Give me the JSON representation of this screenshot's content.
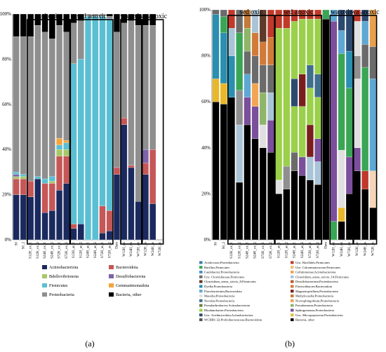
{
  "figure": {
    "panel_labels": [
      "(a)",
      "(b)"
    ],
    "group_labels": [
      "sed oxic",
      "sed anoxic",
      "wa oxic",
      "wa anoxic"
    ]
  },
  "colors": {
    "Actinobacteriota": "#1b2a5e",
    "Bacteroidota": "#c65757",
    "Bdellovibrionota": "#a7c769",
    "Desulfobacterota": "#7d63a8",
    "Firmicutes": "#5bbfd3",
    "Gemmatimonadota": "#f3a53c",
    "Proteobacteria": "#8f8f8f",
    "Bacteria, other": "#000000"
  },
  "chart_data": [
    {
      "type": "bar",
      "stacked": true,
      "panel": "(a)",
      "ylim": [
        0,
        100
      ],
      "yticks": [
        "0%",
        "20%",
        "40%",
        "60%",
        "80%",
        "100%"
      ],
      "categories": [
        "S0",
        "S0_2",
        "S12H_ox_1",
        "S12H_ox_2",
        "S24H_ox_1",
        "S24H_ox_2",
        "S72H_ox_1",
        "S72H_ox_2",
        "S12H_as_1",
        "S12H_as_2",
        "S24H_as_1",
        "S24H_as_2",
        "S72H_as_1",
        "S72H_as_2",
        "Dam",
        "W12H_ox",
        "W24H_ox",
        "W72H_ox",
        "W12H_as",
        "W24H_as",
        "W72H_as"
      ],
      "legend": [
        "Actinobacteriota",
        "Bacteroidota",
        "Bdellovibrionota",
        "Desulfobacterota",
        "Firmicutes",
        "Gemmatimonadota",
        "Proteobacteria",
        "Bacteria, other"
      ],
      "series": [
        {
          "name": "Actinobacteriota",
          "values": [
            20,
            20,
            19,
            27,
            12,
            13,
            22,
            25,
            5,
            7,
            0,
            0,
            3,
            4,
            29,
            51,
            32,
            17,
            29,
            16,
            0
          ]
        },
        {
          "name": "Bacteroidota",
          "values": [
            7,
            7,
            7,
            0,
            13,
            12,
            15,
            12,
            2,
            0,
            0,
            0,
            12,
            9,
            3,
            3,
            1,
            0,
            5,
            24,
            0
          ]
        },
        {
          "name": "Bdellovibrionota",
          "values": [
            1,
            1,
            0,
            0,
            0,
            1,
            3,
            3,
            0,
            0,
            0,
            0,
            0,
            0,
            0,
            0,
            0,
            0,
            0,
            0,
            0
          ]
        },
        {
          "name": "Desulfobacterota",
          "values": [
            1,
            0,
            0,
            0,
            0,
            0,
            0,
            0,
            0,
            0,
            0,
            0,
            0,
            0,
            0,
            0,
            0,
            0,
            6,
            0,
            0
          ]
        },
        {
          "name": "Firmicutes",
          "values": [
            1,
            1,
            0,
            1,
            2,
            2,
            2,
            3,
            71,
            73,
            99,
            99,
            84,
            85,
            0,
            0,
            0,
            0,
            0,
            0,
            0
          ]
        },
        {
          "name": "Gemmatimonadota",
          "values": [
            0,
            0,
            0,
            0,
            0,
            0,
            3,
            1,
            0,
            0,
            0,
            0,
            0,
            0,
            0,
            0,
            0,
            0,
            0,
            0,
            0
          ]
        },
        {
          "name": "Proteobacteria",
          "values": [
            60,
            61,
            64,
            67,
            65,
            61,
            50,
            48,
            18,
            17,
            1,
            1,
            1,
            1,
            60,
            42,
            64,
            78,
            55,
            55,
            0
          ]
        },
        {
          "name": "Bacteria, other",
          "values": [
            10,
            10,
            10,
            5,
            8,
            11,
            5,
            8,
            4,
            3,
            0,
            0,
            0,
            1,
            8,
            4,
            3,
            5,
            5,
            5,
            0
          ]
        }
      ]
    },
    {
      "type": "bar",
      "stacked": true,
      "panel": "(b)",
      "ylim": [
        0,
        100
      ],
      "yticks": [
        "0%",
        "20%",
        "40%",
        "60%",
        "80%",
        "100%"
      ],
      "categories": [
        "S0",
        "S0_2",
        "S12H_ox_1",
        "S12H_ox_2",
        "S24H_ox_1",
        "S24H_ox_2",
        "S72H_ox_1",
        "S72H_ox_2",
        "S12H_as_1",
        "S12H_as_2",
        "S24H_as_1",
        "S24H_as_2",
        "S72H_as_1",
        "S72H_as_2",
        "Dam",
        "W12H_ox",
        "W24H_ox",
        "W72H_ox",
        "W12H_as",
        "W24H_as",
        "W72H_as"
      ],
      "legend": [
        "Acidovorax;Proteobacteria",
        "Unc. Bacillales;Firmicutes",
        "Bacillus;Firmicutes",
        "Unc. Caloramatoraceae;Firmicutes",
        "Caulobacter;Proteobacteria",
        "Cellulomonas;Actinobacteriota",
        "Unc. Clostridiaceae;Firmicutes",
        "Clostridium_sensu_stricto_10;Firmicutes",
        "Clostridium_sensu_stricto_8;Firmicutes",
        "Desulfobacterium;Proteobacteria",
        "Dyella;Proteobacteria",
        "Flavisolibacter;Bacteroidota",
        "Flavobacterium;Bacteroidota",
        "Magnetospirillum;Proteobacteria",
        "Massilia;Proteobacteria",
        "Methyloceella;Proteobacteria",
        "Nevskia;Proteobacteria",
        "Novosphingobium;Proteobacteria",
        "Pseudarthrobacter;Actinobacteriota",
        "Pseudomonas;Proteobacteria",
        "Rhodanobacter;Proteobacteria",
        "Sphingomonas;Proteobacteria",
        "Unc. Acidimicrobiia;Actinobacteriota",
        "Unc. Micropepsaceae;Proteobacteria",
        "WCHB1-32;Prolixibacteraceae;Bacteroidota",
        "Bacteria, other"
      ],
      "legend_colors": [
        "#3a7fa8",
        "#c0392b",
        "#3aa655",
        "#e8c07a",
        "#4c93c7",
        "#f2a654",
        "#6b6b6b",
        "#a9c4d6",
        "#5d3a2a",
        "#b85a30",
        "#2a8fb0",
        "#d17b3a",
        "#5fa8d3",
        "#7a1d1d",
        "#e0e0e0",
        "#c47b3b",
        "#3f6e8c",
        "#e9a04d",
        "#6a7f4a",
        "#8fb56a",
        "#9ad04a",
        "#7b4f9b",
        "#2c4a70",
        "#e0c04a",
        "#555555",
        "#000000"
      ],
      "bars": [
        {
          "label": "S0",
          "segments": [
            {
              "c": "#000000",
              "v": 60
            },
            {
              "c": "#e8b72a",
              "v": 10
            },
            {
              "c": "#2a8fb0",
              "v": 28
            },
            {
              "c": "#6b6b6b",
              "v": 2
            }
          ]
        },
        {
          "label": "S0_2",
          "segments": [
            {
              "c": "#000000",
              "v": 59
            },
            {
              "c": "#e8b72a",
              "v": 9
            },
            {
              "c": "#2a8fb0",
              "v": 22
            },
            {
              "c": "#3aa655",
              "v": 7
            },
            {
              "c": "#6b6b6b",
              "v": 3
            }
          ]
        },
        {
          "label": "S12H_ox_1",
          "segments": [
            {
              "c": "#000000",
              "v": 62
            },
            {
              "c": "#2a8fb0",
              "v": 18
            },
            {
              "c": "#a9c4d6",
              "v": 12
            },
            {
              "c": "#c0392b",
              "v": 8
            }
          ]
        },
        {
          "label": "S12H_ox_2",
          "segments": [
            {
              "c": "#000000",
              "v": 25
            },
            {
              "c": "#a9c4d6",
              "v": 25
            },
            {
              "c": "#8f8f8f",
              "v": 15
            },
            {
              "c": "#3aa655",
              "v": 25
            },
            {
              "c": "#6b6b6b",
              "v": 10
            }
          ]
        },
        {
          "label": "S24H_ox_1",
          "segments": [
            {
              "c": "#000000",
              "v": 50
            },
            {
              "c": "#7b4f9b",
              "v": 12
            },
            {
              "c": "#5fa8d3",
              "v": 10
            },
            {
              "c": "#6b6b6b",
              "v": 10
            },
            {
              "c": "#8fb56a",
              "v": 10
            },
            {
              "c": "#c47b3b",
              "v": 8
            }
          ]
        },
        {
          "label": "S24H_ox_2",
          "segments": [
            {
              "c": "#000000",
              "v": 44
            },
            {
              "c": "#7b4f9b",
              "v": 14
            },
            {
              "c": "#f2a654",
              "v": 10
            },
            {
              "c": "#6b6b6b",
              "v": 12
            },
            {
              "c": "#d17b3a",
              "v": 10
            },
            {
              "c": "#a9c4d6",
              "v": 10
            }
          ]
        },
        {
          "label": "S72H_ox_1",
          "segments": [
            {
              "c": "#000000",
              "v": 40
            },
            {
              "c": "#e0e0e0",
              "v": 10
            },
            {
              "c": "#8fb56a",
              "v": 14
            },
            {
              "c": "#6b6b6b",
              "v": 12
            },
            {
              "c": "#d17b3a",
              "v": 10
            },
            {
              "c": "#5d3a2a",
              "v": 14
            }
          ]
        },
        {
          "label": "S72H_ox_2",
          "segments": [
            {
              "c": "#000000",
              "v": 38
            },
            {
              "c": "#7b4f9b",
              "v": 14
            },
            {
              "c": "#a9c4d6",
              "v": 12
            },
            {
              "c": "#6b6b6b",
              "v": 12
            },
            {
              "c": "#d17b3a",
              "v": 12
            },
            {
              "c": "#c0392b",
              "v": 12
            }
          ]
        },
        {
          "label": "S12H_as_1",
          "segments": [
            {
              "c": "#000000",
              "v": 20
            },
            {
              "c": "#e0e0e0",
              "v": 6
            },
            {
              "c": "#9ad04a",
              "v": 66
            },
            {
              "c": "#c0392b",
              "v": 8
            }
          ]
        },
        {
          "label": "S12H_as_2",
          "segments": [
            {
              "c": "#000000",
              "v": 22
            },
            {
              "c": "#8f8f8f",
              "v": 10
            },
            {
              "c": "#9ad04a",
              "v": 60
            },
            {
              "c": "#c0392b",
              "v": 8
            }
          ]
        },
        {
          "label": "S24H_as_1",
          "segments": [
            {
              "c": "#000000",
              "v": 30
            },
            {
              "c": "#6b6b6b",
              "v": 8
            },
            {
              "c": "#9ad04a",
              "v": 20
            },
            {
              "c": "#2c4a70",
              "v": 12
            },
            {
              "c": "#9ad04a",
              "v": 25
            },
            {
              "c": "#c0392b",
              "v": 5
            }
          ]
        },
        {
          "label": "S24H_as_2",
          "segments": [
            {
              "c": "#000000",
              "v": 28
            },
            {
              "c": "#7b4f9b",
              "v": 8
            },
            {
              "c": "#9ad04a",
              "v": 22
            },
            {
              "c": "#7a1d1d",
              "v": 14
            },
            {
              "c": "#9ad04a",
              "v": 24
            },
            {
              "c": "#c0392b",
              "v": 4
            }
          ]
        },
        {
          "label": "S72H_as_1",
          "segments": [
            {
              "c": "#000000",
              "v": 26
            },
            {
              "c": "#a9c4d6",
              "v": 10
            },
            {
              "c": "#7a1d1d",
              "v": 14
            },
            {
              "c": "#9ad04a",
              "v": 16
            },
            {
              "c": "#3f6e8c",
              "v": 10
            },
            {
              "c": "#9ad04a",
              "v": 20
            },
            {
              "c": "#c0392b",
              "v": 4
            }
          ]
        },
        {
          "label": "S72H_as_2",
          "segments": [
            {
              "c": "#000000",
              "v": 24
            },
            {
              "c": "#a9c4d6",
              "v": 10
            },
            {
              "c": "#7b4f9b",
              "v": 10
            },
            {
              "c": "#9ad04a",
              "v": 18
            },
            {
              "c": "#3f6e8c",
              "v": 10
            },
            {
              "c": "#9ad04a",
              "v": 24
            },
            {
              "c": "#c0392b",
              "v": 4
            }
          ]
        },
        {
          "label": "Dam",
          "segments": [
            {
              "c": "#000000",
              "v": 96
            },
            {
              "c": "#3aa655",
              "v": 4
            }
          ]
        },
        {
          "label": "W12H_ox",
          "segments": [
            {
              "c": "#3aa655",
              "v": 8
            },
            {
              "c": "#7b4f9b",
              "v": 87
            },
            {
              "c": "#5fa8d3",
              "v": 5
            }
          ]
        },
        {
          "label": "W24H_ox",
          "segments": [
            {
              "c": "#000000",
              "v": 8
            },
            {
              "c": "#e8b72a",
              "v": 6
            },
            {
              "c": "#e0e0e0",
              "v": 25
            },
            {
              "c": "#3aa655",
              "v": 42
            },
            {
              "c": "#5fa8d3",
              "v": 10
            },
            {
              "c": "#2c4a70",
              "v": 9
            }
          ]
        },
        {
          "label": "W72H_ox",
          "segments": [
            {
              "c": "#000000",
              "v": 20
            },
            {
              "c": "#7b4f9b",
              "v": 16
            },
            {
              "c": "#3aa655",
              "v": 30
            },
            {
              "c": "#2a8fb0",
              "v": 16
            },
            {
              "c": "#2c4a70",
              "v": 18
            }
          ]
        },
        {
          "label": "W12H_as",
          "segments": [
            {
              "c": "#000000",
              "v": 30
            },
            {
              "c": "#7b4f9b",
              "v": 10
            },
            {
              "c": "#e0e0e0",
              "v": 30
            },
            {
              "c": "#8f8f8f",
              "v": 10
            },
            {
              "c": "#e0e0e0",
              "v": 15
            },
            {
              "c": "#c0392b",
              "v": 5
            }
          ]
        },
        {
          "label": "W24H_as",
          "segments": [
            {
              "c": "#000000",
              "v": 22
            },
            {
              "c": "#c0392b",
              "v": 8
            },
            {
              "c": "#3aa655",
              "v": 45
            },
            {
              "c": "#6b6b6b",
              "v": 10
            },
            {
              "c": "#5fa8d3",
              "v": 10
            },
            {
              "c": "#2c4a70",
              "v": 5
            }
          ]
        },
        {
          "label": "W72H_as",
          "segments": [
            {
              "c": "#000000",
              "v": 14
            },
            {
              "c": "#f5d5b8",
              "v": 16
            },
            {
              "c": "#5fa8d3",
              "v": 40
            },
            {
              "c": "#6b6b6b",
              "v": 14
            },
            {
              "c": "#e9a04d",
              "v": 16
            }
          ]
        }
      ]
    }
  ]
}
